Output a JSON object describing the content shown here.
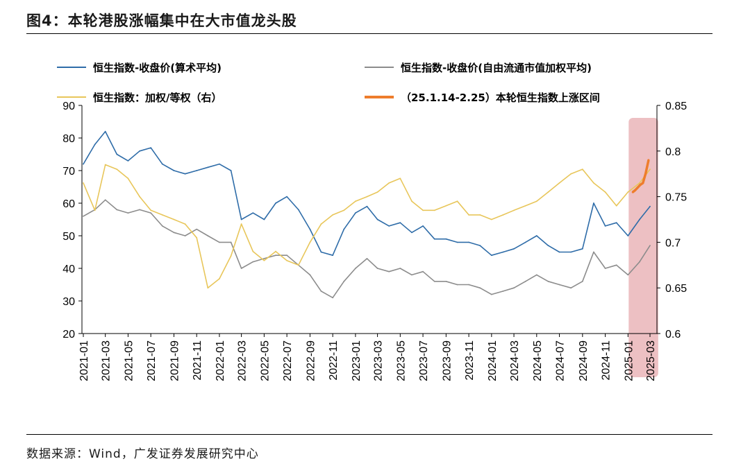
{
  "figure": {
    "title": "图4：本轮港股涨幅集中在大市值龙头股",
    "source": "数据来源：Wind，广发证券发展研究中心"
  },
  "chart_data": {
    "type": "line",
    "title": "",
    "xlabel": "",
    "ylabel": "",
    "x_ticks": [
      "2021-01",
      "2021-03",
      "2021-05",
      "2021-07",
      "2021-09",
      "2021-11",
      "2022-01",
      "2022-03",
      "2022-05",
      "2022-07",
      "2022-09",
      "2022-11",
      "2023-01",
      "2023-03",
      "2023-05",
      "2023-07",
      "2023-09",
      "2023-11",
      "2024-01",
      "2024-03",
      "2024-05",
      "2024-07",
      "2024-09",
      "2024-11",
      "2025-01",
      "2025-03"
    ],
    "ylim_left": [
      20,
      90
    ],
    "yticks_left": [
      "20",
      "30",
      "40",
      "50",
      "60",
      "70",
      "80",
      "90"
    ],
    "ylim_right": [
      0.6,
      0.85
    ],
    "yticks_right": [
      "0.6",
      "0.65",
      "0.7",
      "0.75",
      "0.8",
      "0.85"
    ],
    "grid": false,
    "legend_position": "top",
    "highlight": {
      "start": "2025-01-14",
      "end": "2025-02-25",
      "color": "#eab5b8"
    },
    "series": [
      {
        "name": "恒生指数-收盘价(算术平均)",
        "axis": "left",
        "color": "#2e6ca8",
        "x": [
          "2021-01",
          "2021-02",
          "2021-03",
          "2021-04",
          "2021-05",
          "2021-06",
          "2021-07",
          "2021-08",
          "2021-09",
          "2021-10",
          "2021-11",
          "2021-12",
          "2022-01",
          "2022-02",
          "2022-03",
          "2022-04",
          "2022-05",
          "2022-06",
          "2022-07",
          "2022-08",
          "2022-09",
          "2022-10",
          "2022-11",
          "2022-12",
          "2023-01",
          "2023-02",
          "2023-03",
          "2023-04",
          "2023-05",
          "2023-06",
          "2023-07",
          "2023-08",
          "2023-09",
          "2023-10",
          "2023-11",
          "2023-12",
          "2024-01",
          "2024-02",
          "2024-03",
          "2024-04",
          "2024-05",
          "2024-06",
          "2024-07",
          "2024-08",
          "2024-09",
          "2024-10",
          "2024-11",
          "2024-12",
          "2025-01",
          "2025-02",
          "2025-03"
        ],
        "y": [
          72,
          78,
          82,
          75,
          73,
          76,
          77,
          72,
          70,
          69,
          70,
          71,
          72,
          70,
          55,
          57,
          55,
          60,
          62,
          58,
          52,
          45,
          44,
          52,
          57,
          59,
          55,
          53,
          54,
          51,
          53,
          49,
          49,
          48,
          48,
          47,
          44,
          45,
          46,
          48,
          50,
          47,
          45,
          45,
          46,
          60,
          53,
          54,
          50,
          55,
          59
        ]
      },
      {
        "name": "恒生指数-收盘价(自由流通市值加权平均)",
        "axis": "left",
        "color": "#8c8c8c",
        "x": [
          "2021-01",
          "2021-02",
          "2021-03",
          "2021-04",
          "2021-05",
          "2021-06",
          "2021-07",
          "2021-08",
          "2021-09",
          "2021-10",
          "2021-11",
          "2021-12",
          "2022-01",
          "2022-02",
          "2022-03",
          "2022-04",
          "2022-05",
          "2022-06",
          "2022-07",
          "2022-08",
          "2022-09",
          "2022-10",
          "2022-11",
          "2022-12",
          "2023-01",
          "2023-02",
          "2023-03",
          "2023-04",
          "2023-05",
          "2023-06",
          "2023-07",
          "2023-08",
          "2023-09",
          "2023-10",
          "2023-11",
          "2023-12",
          "2024-01",
          "2024-02",
          "2024-03",
          "2024-04",
          "2024-05",
          "2024-06",
          "2024-07",
          "2024-08",
          "2024-09",
          "2024-10",
          "2024-11",
          "2024-12",
          "2025-01",
          "2025-02",
          "2025-03"
        ],
        "y": [
          56,
          58,
          61,
          58,
          57,
          58,
          57,
          53,
          51,
          50,
          52,
          50,
          48,
          48,
          40,
          42,
          43,
          44,
          44,
          41,
          38,
          33,
          31,
          36,
          40,
          43,
          40,
          39,
          40,
          38,
          39,
          36,
          36,
          35,
          35,
          34,
          32,
          33,
          34,
          36,
          38,
          36,
          35,
          34,
          36,
          45,
          40,
          41,
          38,
          42,
          47
        ]
      },
      {
        "name": "恒生指数：加权/等权（右）",
        "axis": "right",
        "color": "#e8c65a",
        "x": [
          "2021-01",
          "2021-02",
          "2021-03",
          "2021-04",
          "2021-05",
          "2021-06",
          "2021-07",
          "2021-08",
          "2021-09",
          "2021-10",
          "2021-11",
          "2021-12",
          "2022-01",
          "2022-02",
          "2022-03",
          "2022-04",
          "2022-05",
          "2022-06",
          "2022-07",
          "2022-08",
          "2022-09",
          "2022-10",
          "2022-11",
          "2022-12",
          "2023-01",
          "2023-02",
          "2023-03",
          "2023-04",
          "2023-05",
          "2023-06",
          "2023-07",
          "2023-08",
          "2023-09",
          "2023-10",
          "2023-11",
          "2023-12",
          "2024-01",
          "2024-02",
          "2024-03",
          "2024-04",
          "2024-05",
          "2024-06",
          "2024-07",
          "2024-08",
          "2024-09",
          "2024-10",
          "2024-11",
          "2024-12",
          "2025-01",
          "2025-02",
          "2025-03"
        ],
        "y": [
          0.765,
          0.735,
          0.785,
          0.78,
          0.77,
          0.75,
          0.735,
          0.73,
          0.725,
          0.72,
          0.705,
          0.65,
          0.66,
          0.685,
          0.72,
          0.69,
          0.68,
          0.69,
          0.68,
          0.675,
          0.7,
          0.72,
          0.73,
          0.735,
          0.745,
          0.75,
          0.755,
          0.765,
          0.77,
          0.745,
          0.735,
          0.735,
          0.74,
          0.745,
          0.73,
          0.73,
          0.725,
          0.73,
          0.735,
          0.74,
          0.745,
          0.755,
          0.765,
          0.775,
          0.78,
          0.765,
          0.755,
          0.74,
          0.755,
          0.765,
          0.78
        ]
      },
      {
        "name": "（25.1.14-2.25）本轮恒生指数上涨区间",
        "axis": "right",
        "color": "#ee7d2c",
        "x": [
          "2025-01-14",
          "2025-01-20",
          "2025-01-27",
          "2025-02-03",
          "2025-02-10",
          "2025-02-17",
          "2025-02-25"
        ],
        "y": [
          0.755,
          0.757,
          0.76,
          0.763,
          0.765,
          0.775,
          0.79
        ]
      }
    ]
  }
}
